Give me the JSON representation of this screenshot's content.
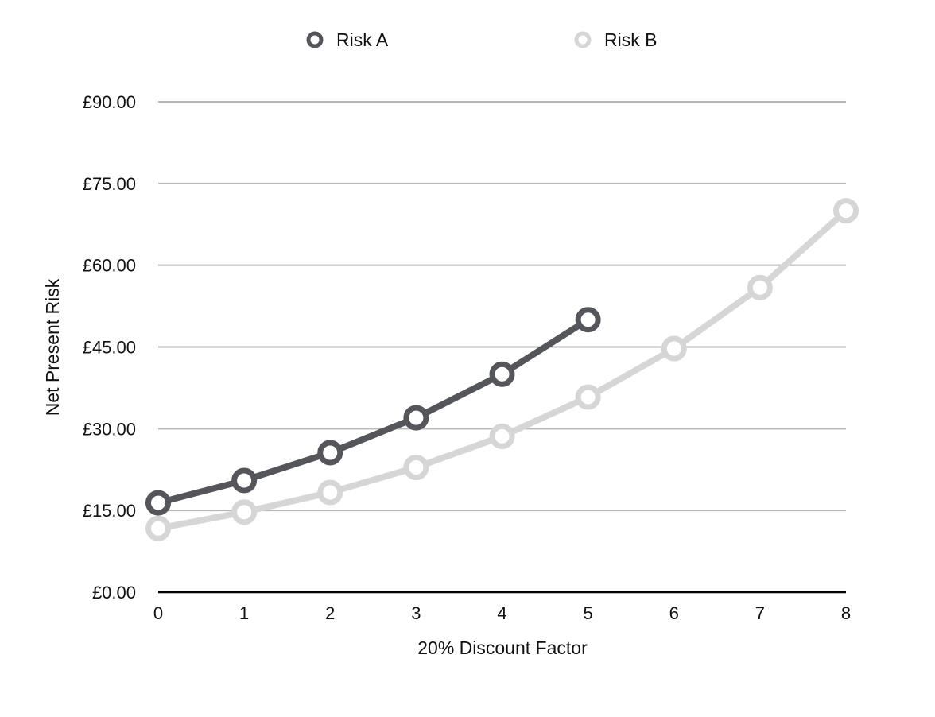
{
  "chart_data": {
    "type": "line",
    "title": "",
    "xlabel": "20% Discount Factor",
    "ylabel": "Net Present Risk",
    "xlim": [
      0,
      8
    ],
    "ylim": [
      0,
      90
    ],
    "x_ticks": [
      "0",
      "1",
      "2",
      "3",
      "4",
      "5",
      "6",
      "7",
      "8"
    ],
    "y_ticks": [
      {
        "value": 0,
        "label": "£0.00"
      },
      {
        "value": 15,
        "label": "£15.00"
      },
      {
        "value": 30,
        "label": "£30.00"
      },
      {
        "value": 45,
        "label": "£45.00"
      },
      {
        "value": 60,
        "label": "£60.00"
      },
      {
        "value": 75,
        "label": "£75.00"
      },
      {
        "value": 90,
        "label": "£90.00"
      }
    ],
    "grid": true,
    "legend_position": "top",
    "series": [
      {
        "name": "Risk A",
        "color": "#54565b",
        "x": [
          0,
          1,
          2,
          3,
          4,
          5
        ],
        "values": [
          16.4,
          20.5,
          25.6,
          32.0,
          40.0,
          50.0
        ]
      },
      {
        "name": "Risk B",
        "color": "#d6d6d6",
        "x": [
          0,
          1,
          2,
          3,
          4,
          5,
          6,
          7,
          8
        ],
        "values": [
          11.7,
          14.7,
          18.3,
          22.9,
          28.6,
          35.8,
          44.7,
          55.9,
          70.0
        ]
      }
    ]
  }
}
